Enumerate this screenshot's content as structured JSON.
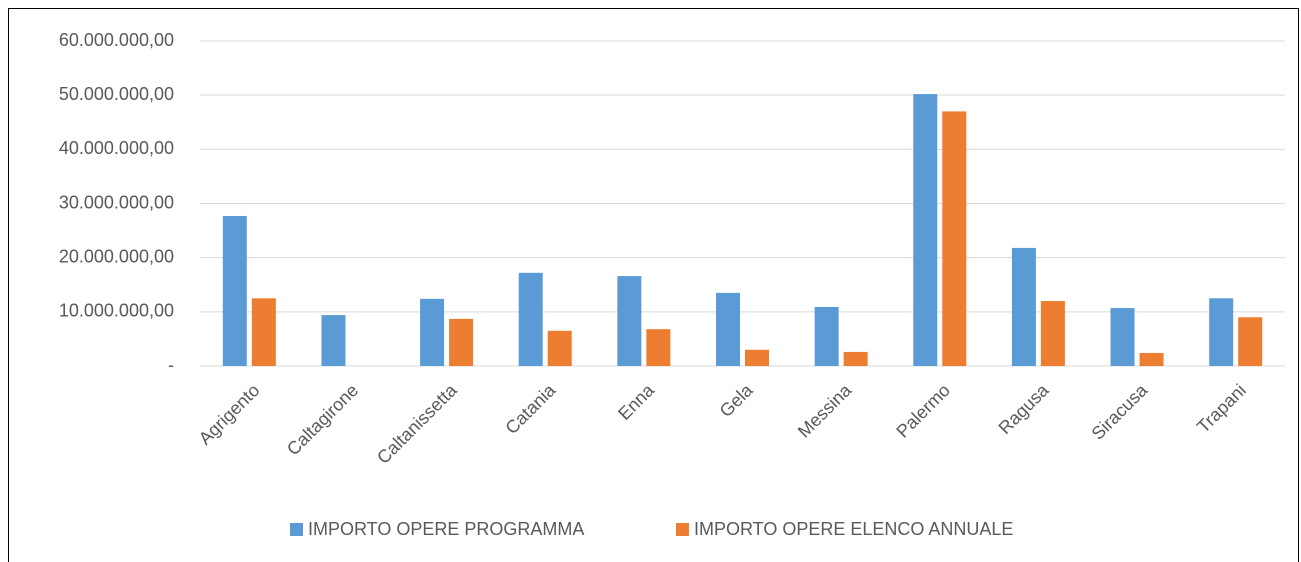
{
  "chart_data": {
    "type": "bar",
    "categories": [
      "Agrigento",
      "Caltagirone",
      "Caltanissetta",
      "Catania",
      "Enna",
      "Gela",
      "Messina",
      "Palermo",
      "Ragusa",
      "Siracusa",
      "Trapani"
    ],
    "series": [
      {
        "name": "IMPORTO OPERE PROGRAMMA",
        "color": "#5b9bd5",
        "values": [
          27700000,
          9400000,
          12400000,
          17200000,
          16600000,
          13500000,
          10900000,
          50200000,
          21800000,
          10700000,
          12500000
        ]
      },
      {
        "name": "IMPORTO OPERE ELENCO ANNUALE",
        "color": "#ed7d31",
        "values": [
          12500000,
          0,
          8700000,
          6500000,
          6800000,
          3000000,
          2600000,
          47000000,
          12000000,
          2400000,
          9000000
        ]
      }
    ],
    "ylim": [
      0,
      60000000
    ],
    "yticks": [
      {
        "value": 0,
        "label": "-"
      },
      {
        "value": 10000000,
        "label": "10.000.000,00"
      },
      {
        "value": 20000000,
        "label": "20.000.000,00"
      },
      {
        "value": 30000000,
        "label": "30.000.000,00"
      },
      {
        "value": 40000000,
        "label": "40.000.000,00"
      },
      {
        "value": 50000000,
        "label": "50.000.000,00"
      },
      {
        "value": 60000000,
        "label": "60.000.000,00"
      }
    ],
    "grid": true,
    "legend": "bottom"
  }
}
